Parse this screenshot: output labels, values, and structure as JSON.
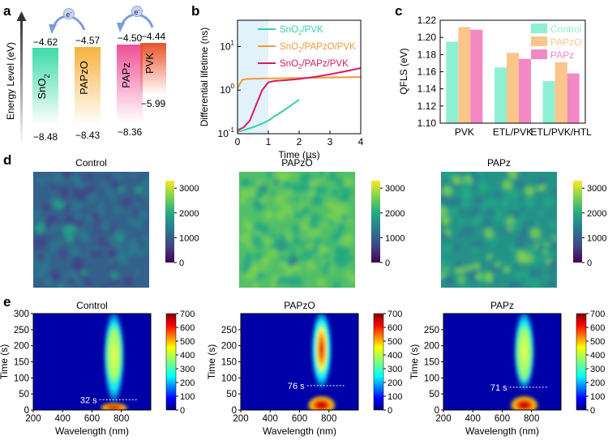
{
  "panels": {
    "a": "a",
    "b": "b",
    "c": "c",
    "d": "d",
    "e": "e"
  },
  "chart_data": [
    {
      "panel": "a",
      "type": "diagram",
      "ylabel": "Energy Level (eV)",
      "electron_label": "e",
      "electron_sup": "-",
      "materials": [
        {
          "name": "SnO",
          "sub": "2",
          "upper": "−4.62",
          "lower": "−8.48",
          "color": "#3ddba8"
        },
        {
          "name": "PAPzO",
          "sub": "",
          "upper": "−4.57",
          "lower": "−8.43",
          "color": "#f7b23f"
        },
        {
          "name": "PAPz",
          "sub": "",
          "upper": "−4.50",
          "lower": "−8.36",
          "color": "#ef4f96"
        },
        {
          "name": "PVK",
          "sub": "",
          "upper": "−4.44",
          "lower": "−5.99",
          "color": "#e8532a"
        }
      ]
    },
    {
      "panel": "b",
      "type": "line",
      "xlabel_pre": "Time (",
      "xlabel_mu": "μ",
      "xlabel_post": "s)",
      "ylabel": "Differential lifetime (ns)",
      "xlim": [
        0,
        4
      ],
      "ylim": [
        0.1,
        40
      ],
      "yscale": "log",
      "xticks": [
        "0",
        "1",
        "2",
        "3",
        "4"
      ],
      "yticks": [
        {
          "base": "10",
          "exp": "-1",
          "v": 0.1
        },
        {
          "base": "10",
          "exp": "0",
          "v": 1
        },
        {
          "base": "10",
          "exp": "1",
          "v": 10
        }
      ],
      "legend_position": "top-right",
      "shaded_range": [
        0,
        1
      ],
      "series": [
        {
          "name_pre": "SnO",
          "name_sub": "2",
          "name_post": "/PVK",
          "color": "#39cfa8",
          "x": [
            0,
            0.2,
            0.5,
            0.8,
            1.0,
            1.2,
            1.5,
            1.8,
            2.0
          ],
          "y": [
            0.11,
            0.12,
            0.14,
            0.17,
            0.2,
            0.25,
            0.34,
            0.48,
            0.6
          ]
        },
        {
          "name_pre": "SnO",
          "name_sub": "2",
          "name_post": "/PAPzO/PVK",
          "color": "#f29a3a",
          "x": [
            0,
            0.1,
            0.15,
            0.2,
            0.3,
            0.5,
            1.0,
            2.0,
            3.0,
            4.0
          ],
          "y": [
            1.1,
            1.5,
            1.7,
            1.75,
            1.8,
            1.82,
            1.85,
            1.9,
            1.95,
            2.0
          ]
        },
        {
          "name_pre": "SnO",
          "name_sub": "2",
          "name_post": "/PAPz/PVK",
          "color": "#d81b60",
          "x": [
            0,
            0.2,
            0.4,
            0.6,
            0.8,
            1.0,
            1.2,
            1.5,
            2.0,
            2.5,
            3.0,
            3.5,
            4.0
          ],
          "y": [
            0.12,
            0.14,
            0.2,
            0.45,
            1.0,
            1.5,
            1.62,
            1.68,
            1.8,
            2.0,
            2.3,
            2.7,
            3.2
          ]
        }
      ]
    },
    {
      "panel": "c",
      "type": "bar",
      "ylabel": "QFLS (eV)",
      "ylim": [
        1.1,
        1.22
      ],
      "yticks": [
        "1.10",
        "1.12",
        "1.14",
        "1.16",
        "1.18",
        "1.20",
        "1.22"
      ],
      "categories": [
        "PVK",
        "ETL/PVK",
        "ETL/PVK/HTL"
      ],
      "legend_position": "top-right",
      "series": [
        {
          "name": "Control",
          "color": "#8ef0d2",
          "values": [
            1.195,
            1.165,
            1.149
          ]
        },
        {
          "name": "PAPzO",
          "color": "#fbc58c",
          "values": [
            1.212,
            1.182,
            1.171
          ]
        },
        {
          "name": "PAPz",
          "color": "#f488c4",
          "values": [
            1.209,
            1.175,
            1.158
          ]
        }
      ]
    },
    {
      "panel": "d",
      "type": "heatmap",
      "colorbar_ticks": [
        "3000",
        "2000",
        "1000",
        "0"
      ],
      "colorbar_range": [
        0,
        3300
      ],
      "maps": [
        {
          "title": "Control",
          "mean_level": 0.32
        },
        {
          "title": "PAPzO",
          "mean_level": 0.68
        },
        {
          "title": "PAPz",
          "mean_level": 0.56
        }
      ]
    },
    {
      "panel": "e",
      "type": "heatmap",
      "xlabel": "Wavelength (nm)",
      "ylabel": "Time (s)",
      "xlim": [
        200,
        1000
      ],
      "ylim": [
        0,
        300
      ],
      "xticks": [
        "200",
        "400",
        "600",
        "800"
      ],
      "yticks_first": [
        "0",
        "50",
        "100",
        "150",
        "200",
        "250",
        "300"
      ],
      "yticks_other": [
        "0",
        "50",
        "100",
        "150",
        "200",
        "250"
      ],
      "colorbar_ticks": [
        "700",
        "600",
        "500",
        "400",
        "300",
        "200",
        "100",
        "0"
      ],
      "colorbar_range": [
        0,
        700
      ],
      "peak_wavelength": 750,
      "maps": [
        {
          "title": "Control",
          "annotation": "32 s",
          "marker_time": 32
        },
        {
          "title": "PAPzO",
          "annotation": "76 s",
          "marker_time": 76
        },
        {
          "title": "PAPz",
          "annotation": "71 s",
          "marker_time": 71
        }
      ]
    }
  ]
}
